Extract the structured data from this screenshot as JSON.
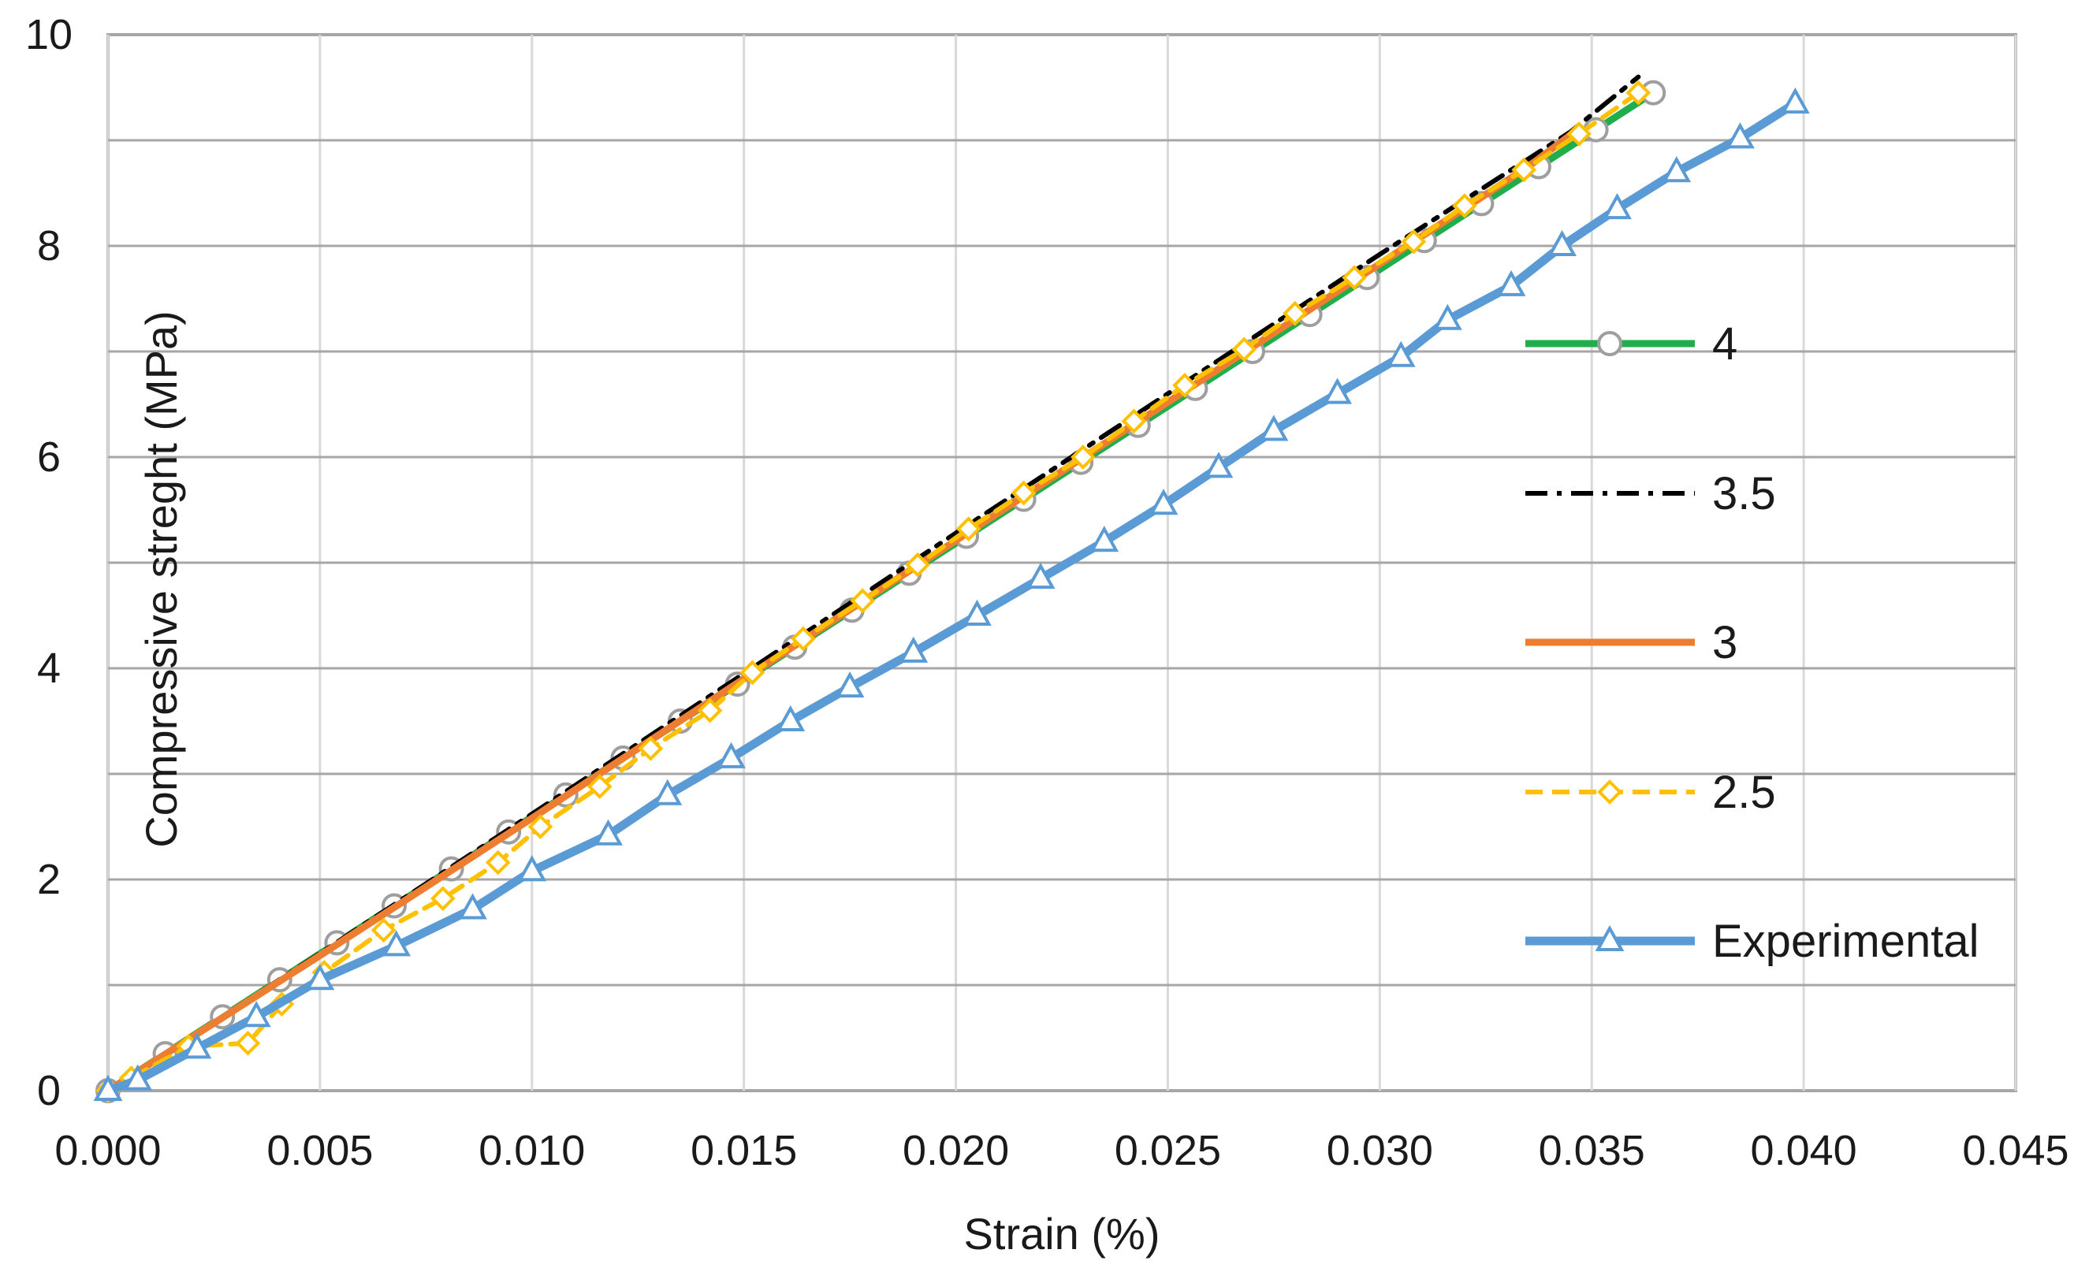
{
  "chart_data": {
    "type": "line",
    "title": "",
    "xlabel": "Strain (%)",
    "ylabel": "Compressive streght (MPa)",
    "xlim": [
      0,
      0.045
    ],
    "ylim": [
      0,
      10
    ],
    "x_ticks": [
      "0.000",
      "0.005",
      "0.010",
      "0.015",
      "0.020",
      "0.025",
      "0.030",
      "0.035",
      "0.040",
      "0.045"
    ],
    "y_ticks": [
      "0",
      "2",
      "4",
      "6",
      "8",
      "10"
    ],
    "grid": true,
    "legend_position": "right",
    "series": [
      {
        "name": "4",
        "color": "#1fae4b",
        "line_style": "solid",
        "marker": "circle",
        "marker_color": "#9e9e9e",
        "points": [
          [
            0,
            0
          ],
          [
            0.00135,
            0.35
          ],
          [
            0.0027,
            0.7
          ],
          [
            0.00405,
            1.05
          ],
          [
            0.0054,
            1.4
          ],
          [
            0.00675,
            1.75
          ],
          [
            0.0081,
            2.1
          ],
          [
            0.00945,
            2.45
          ],
          [
            0.0108,
            2.8
          ],
          [
            0.01215,
            3.15
          ],
          [
            0.0135,
            3.5
          ],
          [
            0.01485,
            3.85
          ],
          [
            0.0162,
            4.2
          ],
          [
            0.01755,
            4.55
          ],
          [
            0.0189,
            4.9
          ],
          [
            0.02025,
            5.25
          ],
          [
            0.0216,
            5.6
          ],
          [
            0.02295,
            5.95
          ],
          [
            0.0243,
            6.3
          ],
          [
            0.02565,
            6.65
          ],
          [
            0.027,
            7.0
          ],
          [
            0.02835,
            7.35
          ],
          [
            0.0297,
            7.7
          ],
          [
            0.03105,
            8.05
          ],
          [
            0.0324,
            8.4
          ],
          [
            0.03375,
            8.75
          ],
          [
            0.0351,
            9.1
          ],
          [
            0.03645,
            9.45
          ]
        ]
      },
      {
        "name": "3.5",
        "color": "#000000",
        "line_style": "dashdot",
        "marker": "none",
        "points": [
          [
            0,
            0
          ],
          [
            0.005,
            1.3
          ],
          [
            0.01,
            2.62
          ],
          [
            0.015,
            3.95
          ],
          [
            0.02,
            5.28
          ],
          [
            0.025,
            6.6
          ],
          [
            0.03,
            7.92
          ],
          [
            0.0345,
            9.08
          ],
          [
            0.0361,
            9.6
          ]
        ]
      },
      {
        "name": "3",
        "color": "#ed7d31",
        "line_style": "solid",
        "marker": "none",
        "points": [
          [
            0,
            0
          ],
          [
            0.005,
            1.28
          ],
          [
            0.01,
            2.58
          ],
          [
            0.015,
            3.9
          ],
          [
            0.02,
            5.21
          ],
          [
            0.025,
            6.52
          ],
          [
            0.03,
            7.83
          ],
          [
            0.0335,
            8.75
          ],
          [
            0.0345,
            9.05
          ]
        ]
      },
      {
        "name": "2.5",
        "color": "#ffc000",
        "line_style": "dashed",
        "marker": "diamond",
        "points": [
          [
            0,
            0
          ],
          [
            0.00055,
            0.12
          ],
          [
            0.0019,
            0.42
          ],
          [
            0.0033,
            0.45
          ],
          [
            0.0041,
            0.82
          ],
          [
            0.0051,
            1.12
          ],
          [
            0.0065,
            1.52
          ],
          [
            0.0079,
            1.82
          ],
          [
            0.0092,
            2.16
          ],
          [
            0.0102,
            2.5
          ],
          [
            0.0116,
            2.88
          ],
          [
            0.0128,
            3.24
          ],
          [
            0.0142,
            3.6
          ],
          [
            0.0152,
            3.96
          ],
          [
            0.0164,
            4.28
          ],
          [
            0.0178,
            4.64
          ],
          [
            0.0191,
            4.98
          ],
          [
            0.0203,
            5.32
          ],
          [
            0.0216,
            5.66
          ],
          [
            0.023,
            6.0
          ],
          [
            0.0242,
            6.34
          ],
          [
            0.0254,
            6.68
          ],
          [
            0.0268,
            7.02
          ],
          [
            0.028,
            7.36
          ],
          [
            0.0294,
            7.7
          ],
          [
            0.0308,
            8.04
          ],
          [
            0.032,
            8.38
          ],
          [
            0.0334,
            8.72
          ],
          [
            0.0347,
            9.06
          ],
          [
            0.0361,
            9.45
          ]
        ]
      },
      {
        "name": "Experimental",
        "color": "#5b9bd5",
        "line_style": "solid",
        "marker": "triangle",
        "points": [
          [
            0,
            0
          ],
          [
            0.0007,
            0.1
          ],
          [
            0.0021,
            0.4
          ],
          [
            0.0035,
            0.7
          ],
          [
            0.005,
            1.05
          ],
          [
            0.0068,
            1.37
          ],
          [
            0.0086,
            1.72
          ],
          [
            0.01,
            2.08
          ],
          [
            0.0118,
            2.42
          ],
          [
            0.0132,
            2.8
          ],
          [
            0.0147,
            3.15
          ],
          [
            0.0161,
            3.5
          ],
          [
            0.0175,
            3.82
          ],
          [
            0.019,
            4.15
          ],
          [
            0.0205,
            4.5
          ],
          [
            0.022,
            4.85
          ],
          [
            0.0235,
            5.2
          ],
          [
            0.0249,
            5.55
          ],
          [
            0.0262,
            5.9
          ],
          [
            0.0275,
            6.25
          ],
          [
            0.029,
            6.6
          ],
          [
            0.0305,
            6.95
          ],
          [
            0.0316,
            7.3
          ],
          [
            0.0331,
            7.62
          ],
          [
            0.0343,
            8.0
          ],
          [
            0.0356,
            8.35
          ],
          [
            0.037,
            8.7
          ],
          [
            0.0385,
            9.02
          ],
          [
            0.0398,
            9.35
          ]
        ]
      }
    ]
  }
}
